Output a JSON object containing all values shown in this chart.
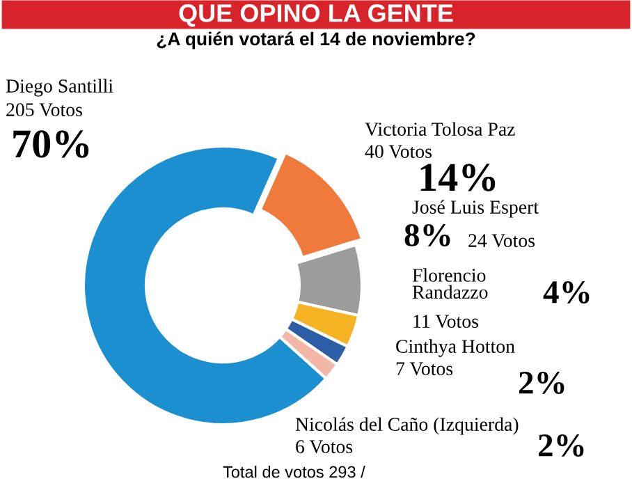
{
  "chart_data": {
    "type": "donut",
    "title": "QUE OPINO LA GENTE",
    "subtitle": "¿A quién votará el 14 de noviembre?",
    "categories": [
      "Diego Santilli",
      "Victoria Tolosa Paz",
      "José Luis Espert",
      "Florencio\nRandazzo",
      "Cinthya Hotton",
      "Nicolás del Caño (Izquierda)"
    ],
    "values": [
      205,
      40,
      24,
      11,
      7,
      6
    ],
    "colors": [
      "#1b8fd0",
      "#f07a3c",
      "#9c9c9c",
      "#f6b324",
      "#2c5ea8",
      "#f2b7a6"
    ],
    "value_labels": [
      "205 Votos",
      "40 Votos",
      "24 Votos",
      "11 Votos",
      "7 Votos",
      "6 Votos"
    ],
    "annotations": [
      "70%",
      "14%",
      "8%",
      "4%",
      "2%",
      "2%",
      "Total de votos 293 /"
    ],
    "legend": false
  }
}
